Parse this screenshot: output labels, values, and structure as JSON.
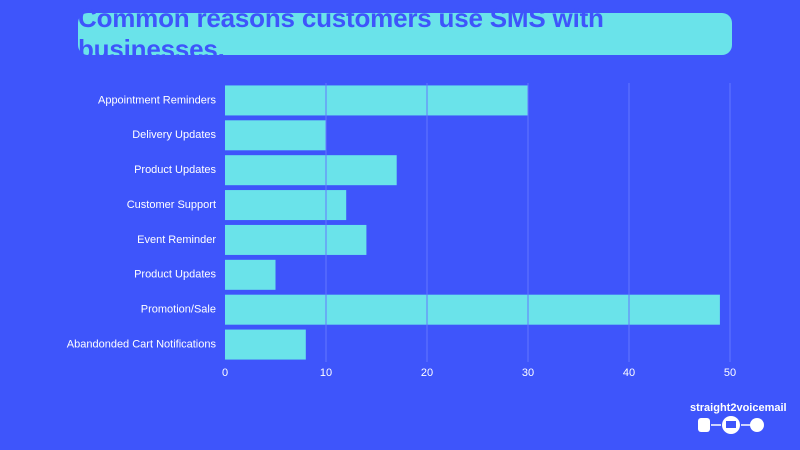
{
  "chart_data": {
    "type": "bar",
    "orientation": "horizontal",
    "title": "Common reasons customers use SMS with businesses.",
    "categories": [
      "Appointment Reminders",
      "Delivery Updates",
      "Product Updates",
      "Customer Support",
      "Event Reminder",
      "Product Updates",
      "Promotion/Sale",
      "Abandonded Cart Notifications"
    ],
    "values": [
      30,
      10,
      17,
      12,
      14,
      5,
      49,
      8
    ],
    "color": "#6ae3ea",
    "xlim": [
      0,
      50
    ],
    "xticks": [
      0,
      10,
      20,
      30,
      40,
      50
    ],
    "grid": true
  },
  "brand": "straight2voicemail"
}
